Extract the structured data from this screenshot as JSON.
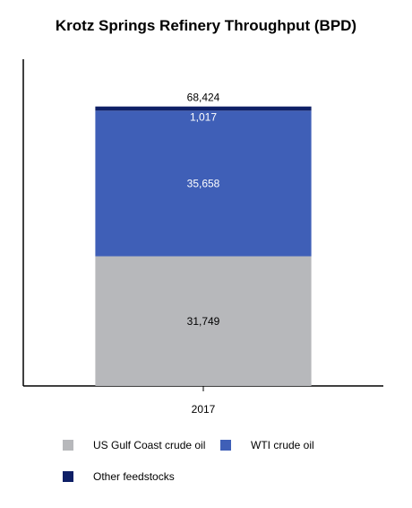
{
  "chart_data": {
    "type": "bar",
    "stacked": true,
    "title": "Krotz Springs Refinery Throughput (BPD)",
    "categories": [
      "2017"
    ],
    "series": [
      {
        "name": "US Gulf Coast crude oil",
        "values": [
          31749
        ],
        "labels": [
          "31,749"
        ],
        "color": "#b7b8bb",
        "label_color": "#000000"
      },
      {
        "name": "WTI crude oil",
        "values": [
          35658
        ],
        "labels": [
          "35,658"
        ],
        "color": "#3f5fb7",
        "label_color": "#ffffff"
      },
      {
        "name": "Other feedstocks",
        "values": [
          1017
        ],
        "labels": [
          "1,017"
        ],
        "color": "#0e1f66",
        "label_color": "#ffffff"
      }
    ],
    "totals": [
      68424
    ],
    "total_labels": [
      "68,424"
    ],
    "ylim": [
      0,
      80000
    ],
    "grid": false,
    "legend_position": "bottom",
    "axis_color": "#000000"
  }
}
